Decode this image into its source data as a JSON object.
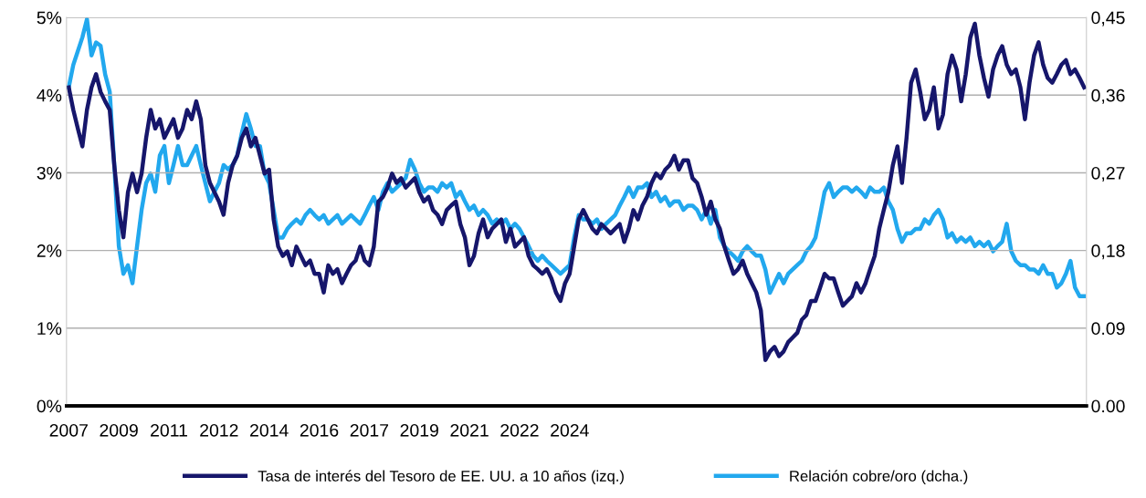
{
  "chart_data": {
    "type": "line",
    "categories": [
      "2007",
      null,
      null,
      null,
      null,
      null,
      null,
      null,
      null,
      null,
      null,
      "2009",
      null,
      null,
      null,
      null,
      null,
      null,
      null,
      null,
      null,
      null,
      "2011",
      null,
      null,
      null,
      null,
      null,
      null,
      null,
      null,
      null,
      null,
      "2012",
      null,
      null,
      null,
      null,
      null,
      null,
      null,
      null,
      null,
      null,
      "2014",
      null,
      null,
      null,
      null,
      null,
      null,
      null,
      null,
      null,
      null,
      "2016",
      null,
      null,
      null,
      null,
      null,
      null,
      null,
      null,
      null,
      null,
      "2017",
      null,
      null,
      null,
      null,
      null,
      null,
      null,
      null,
      null,
      null,
      "2019",
      null,
      null,
      null,
      null,
      null,
      null,
      null,
      null,
      null,
      null,
      "2021",
      null,
      null,
      null,
      null,
      null,
      null,
      null,
      null,
      null,
      null,
      "2022",
      null,
      null,
      null,
      null,
      null,
      null,
      null,
      null,
      null,
      null,
      "2024",
      null,
      null,
      null,
      null,
      null,
      null,
      null,
      null,
      null,
      null,
      null,
      null,
      null,
      null,
      null,
      null,
      null,
      null,
      null,
      null,
      null,
      null,
      null,
      null,
      null,
      null,
      null,
      null,
      null,
      null,
      null,
      null,
      null,
      null,
      null,
      null,
      null,
      null,
      null,
      null,
      null,
      null,
      null,
      null,
      null,
      null,
      null,
      null,
      null,
      null,
      null,
      null,
      null,
      null,
      null,
      null,
      null,
      null,
      null,
      null,
      null,
      null,
      null,
      null,
      null,
      null,
      null,
      null,
      null,
      null,
      null,
      null,
      null,
      null,
      null,
      null,
      null,
      null,
      null,
      null,
      null,
      null,
      null,
      null,
      null,
      null,
      null,
      null,
      null,
      null,
      null,
      null,
      null,
      null,
      null,
      null,
      null,
      null,
      null,
      null,
      null,
      null,
      null,
      null,
      null,
      null,
      null,
      null,
      null,
      null,
      null,
      null,
      null
    ],
    "series": [
      {
        "name": "Tasa de interés del Tesoro de EE. UU. a 10 años (izq.)",
        "color": "#16166b",
        "values": [
          4.1,
          3.81,
          3.57,
          3.34,
          3.81,
          4.1,
          4.27,
          4.04,
          3.92,
          3.81,
          3.1,
          2.52,
          2.17,
          2.75,
          2.99,
          2.75,
          2.99,
          3.45,
          3.81,
          3.57,
          3.69,
          3.45,
          3.57,
          3.69,
          3.45,
          3.57,
          3.81,
          3.69,
          3.92,
          3.69,
          3.1,
          2.87,
          2.75,
          2.63,
          2.46,
          2.87,
          3.1,
          3.22,
          3.45,
          3.57,
          3.34,
          3.45,
          3.22,
          2.99,
          3.04,
          2.4,
          2.05,
          1.93,
          1.99,
          1.81,
          2.05,
          1.93,
          1.81,
          1.87,
          1.7,
          1.7,
          1.46,
          1.81,
          1.7,
          1.76,
          1.58,
          1.7,
          1.81,
          1.87,
          2.05,
          1.87,
          1.81,
          2.05,
          2.63,
          2.69,
          2.81,
          2.99,
          2.87,
          2.93,
          2.81,
          2.87,
          2.93,
          2.75,
          2.63,
          2.69,
          2.52,
          2.46,
          2.34,
          2.52,
          2.58,
          2.63,
          2.34,
          2.17,
          1.81,
          1.93,
          2.22,
          2.4,
          2.17,
          2.28,
          2.34,
          2.4,
          2.11,
          2.28,
          2.05,
          2.11,
          2.17,
          1.93,
          1.81,
          1.76,
          1.7,
          1.76,
          1.64,
          1.46,
          1.35,
          1.58,
          1.7,
          2.05,
          2.4,
          2.52,
          2.4,
          2.28,
          2.22,
          2.34,
          2.28,
          2.22,
          2.28,
          2.34,
          2.11,
          2.28,
          2.52,
          2.4,
          2.58,
          2.69,
          2.87,
          2.99,
          2.93,
          3.04,
          3.1,
          3.22,
          3.04,
          3.16,
          3.16,
          2.93,
          2.87,
          2.69,
          2.46,
          2.63,
          2.4,
          2.28,
          2.05,
          1.87,
          1.7,
          1.76,
          1.87,
          1.7,
          1.58,
          1.46,
          1.23,
          0.59,
          0.7,
          0.76,
          0.64,
          0.7,
          0.82,
          0.88,
          0.94,
          1.11,
          1.17,
          1.35,
          1.35,
          1.52,
          1.7,
          1.64,
          1.64,
          1.46,
          1.29,
          1.35,
          1.41,
          1.58,
          1.46,
          1.58,
          1.76,
          1.93,
          2.28,
          2.52,
          2.75,
          3.1,
          3.34,
          2.87,
          3.45,
          4.16,
          4.33,
          4.04,
          3.69,
          3.81,
          4.1,
          3.57,
          3.75,
          4.27,
          4.51,
          4.33,
          3.92,
          4.27,
          4.74,
          4.92,
          4.51,
          4.22,
          3.98,
          4.33,
          4.51,
          4.63,
          4.39,
          4.27,
          4.33,
          4.1,
          3.69,
          4.16,
          4.51,
          4.68,
          4.39,
          4.22,
          4.16,
          4.27,
          4.39,
          4.45,
          4.27,
          4.33,
          4.22,
          4.1
        ]
      },
      {
        "name": "Relación cobre/oro (dcha.)",
        "color": "#22a8ee",
        "axis": "y2",
        "values": [
          0.369,
          0.395,
          0.411,
          0.427,
          0.448,
          0.406,
          0.421,
          0.417,
          0.384,
          0.364,
          0.279,
          0.185,
          0.153,
          0.163,
          0.142,
          0.185,
          0.227,
          0.258,
          0.269,
          0.248,
          0.29,
          0.301,
          0.258,
          0.279,
          0.301,
          0.279,
          0.279,
          0.29,
          0.301,
          0.279,
          0.258,
          0.237,
          0.248,
          0.258,
          0.279,
          0.274,
          0.279,
          0.29,
          0.316,
          0.338,
          0.321,
          0.301,
          0.301,
          0.269,
          0.258,
          0.227,
          0.195,
          0.195,
          0.205,
          0.211,
          0.216,
          0.211,
          0.221,
          0.227,
          0.221,
          0.216,
          0.221,
          0.211,
          0.216,
          0.221,
          0.211,
          0.216,
          0.221,
          0.216,
          0.211,
          0.221,
          0.232,
          0.242,
          0.227,
          0.248,
          0.258,
          0.248,
          0.253,
          0.258,
          0.264,
          0.285,
          0.274,
          0.258,
          0.248,
          0.253,
          0.253,
          0.248,
          0.258,
          0.253,
          0.258,
          0.242,
          0.248,
          0.237,
          0.227,
          0.232,
          0.221,
          0.227,
          0.221,
          0.211,
          0.216,
          0.211,
          0.216,
          0.205,
          0.211,
          0.205,
          0.195,
          0.185,
          0.174,
          0.168,
          0.174,
          0.168,
          0.163,
          0.158,
          0.153,
          0.158,
          0.163,
          0.195,
          0.221,
          0.216,
          0.216,
          0.211,
          0.216,
          0.205,
          0.211,
          0.216,
          0.221,
          0.232,
          0.242,
          0.253,
          0.242,
          0.253,
          0.253,
          0.258,
          0.242,
          0.248,
          0.237,
          0.242,
          0.232,
          0.237,
          0.237,
          0.227,
          0.232,
          0.232,
          0.227,
          0.216,
          0.227,
          0.211,
          0.227,
          0.195,
          0.185,
          0.179,
          0.174,
          0.168,
          0.179,
          0.185,
          0.179,
          0.174,
          0.174,
          0.158,
          0.131,
          0.142,
          0.153,
          0.142,
          0.153,
          0.158,
          0.163,
          0.168,
          0.179,
          0.185,
          0.195,
          0.221,
          0.248,
          0.258,
          0.242,
          0.248,
          0.253,
          0.253,
          0.248,
          0.253,
          0.248,
          0.242,
          0.253,
          0.248,
          0.248,
          0.253,
          0.237,
          0.227,
          0.205,
          0.19,
          0.2,
          0.2,
          0.205,
          0.205,
          0.216,
          0.211,
          0.221,
          0.227,
          0.216,
          0.195,
          0.2,
          0.19,
          0.195,
          0.19,
          0.195,
          0.185,
          0.19,
          0.185,
          0.19,
          0.179,
          0.185,
          0.19,
          0.211,
          0.179,
          0.168,
          0.163,
          0.163,
          0.158,
          0.158,
          0.153,
          0.163,
          0.153,
          0.153,
          0.137,
          0.142,
          0.153,
          0.168,
          0.137,
          0.127,
          0.127
        ]
      }
    ],
    "ylim": [
      0,
      5
    ],
    "yticks": [
      {
        "value": 0,
        "label": "0%"
      },
      {
        "value": 1,
        "label": "1%"
      },
      {
        "value": 2,
        "label": "2%"
      },
      {
        "value": 3,
        "label": "3%"
      },
      {
        "value": 4,
        "label": "4%"
      },
      {
        "value": 5,
        "label": "5%"
      }
    ],
    "y2lim": [
      0,
      0.45
    ],
    "y2ticks": [
      {
        "value": 0,
        "label": "0.00"
      },
      {
        "value": 0.09,
        "label": "0.09"
      },
      {
        "value": 0.18,
        "label": "0,18"
      },
      {
        "value": 0.27,
        "label": "0,27"
      },
      {
        "value": 0.36,
        "label": "0,36"
      },
      {
        "value": 0.45,
        "label": "0,45"
      }
    ],
    "grid": "y",
    "legend": "bottom",
    "line_style": "solid",
    "marker": "none"
  }
}
